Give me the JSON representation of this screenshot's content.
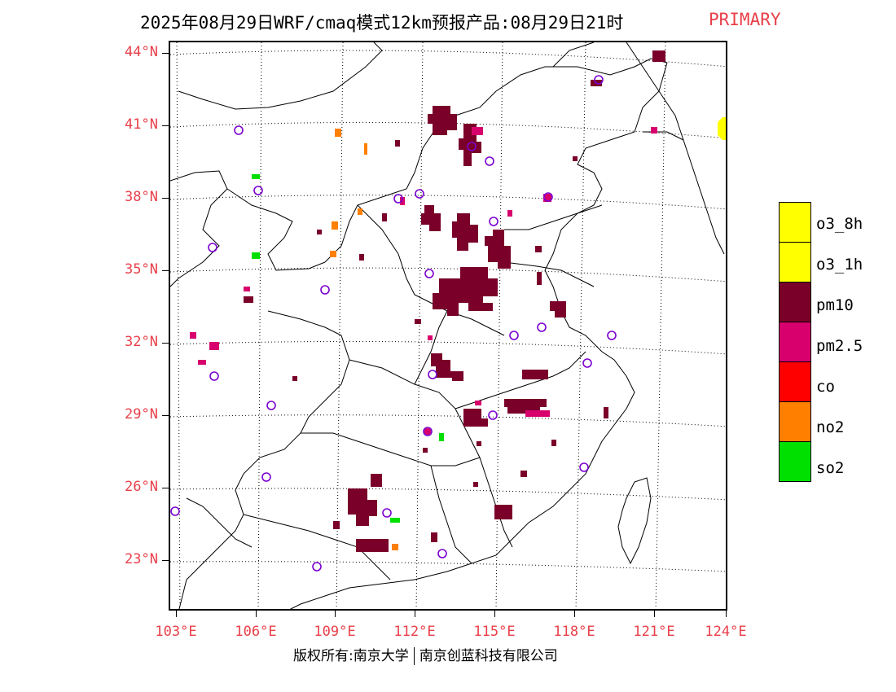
{
  "title": "2025年08月29日WRF/cmaq模式12km预报产品:08月29日21时",
  "title_tag": "PRIMARY",
  "footer": {
    "left": "版权所有:南京大学",
    "right": "南京创蓝科技有限公司"
  },
  "lat_labels": [
    "44°N",
    "41°N",
    "38°N",
    "35°N",
    "32°N",
    "29°N",
    "26°N",
    "23°N"
  ],
  "lon_labels": [
    "103°E",
    "106°E",
    "109°E",
    "112°E",
    "115°E",
    "118°E",
    "121°E",
    "124°E"
  ],
  "legend": [
    {
      "label": "o3_8h",
      "color": "#ffff00"
    },
    {
      "label": "o3_1h",
      "color": "#ffff00"
    },
    {
      "label": "pm10",
      "color": "#7a0029"
    },
    {
      "label": "pm2.5",
      "color": "#d8006d"
    },
    {
      "label": "co",
      "color": "#ff0000"
    },
    {
      "label": "no2",
      "color": "#ff7f00"
    },
    {
      "label": "so2",
      "color": "#00e000"
    }
  ],
  "colors": {
    "pm10": "#7a0029",
    "pm25": "#d8006d",
    "no2": "#ff7f00",
    "so2": "#00e000",
    "o3": "#ffff00",
    "station": "#7a00d0",
    "label": "#e8404a"
  }
}
